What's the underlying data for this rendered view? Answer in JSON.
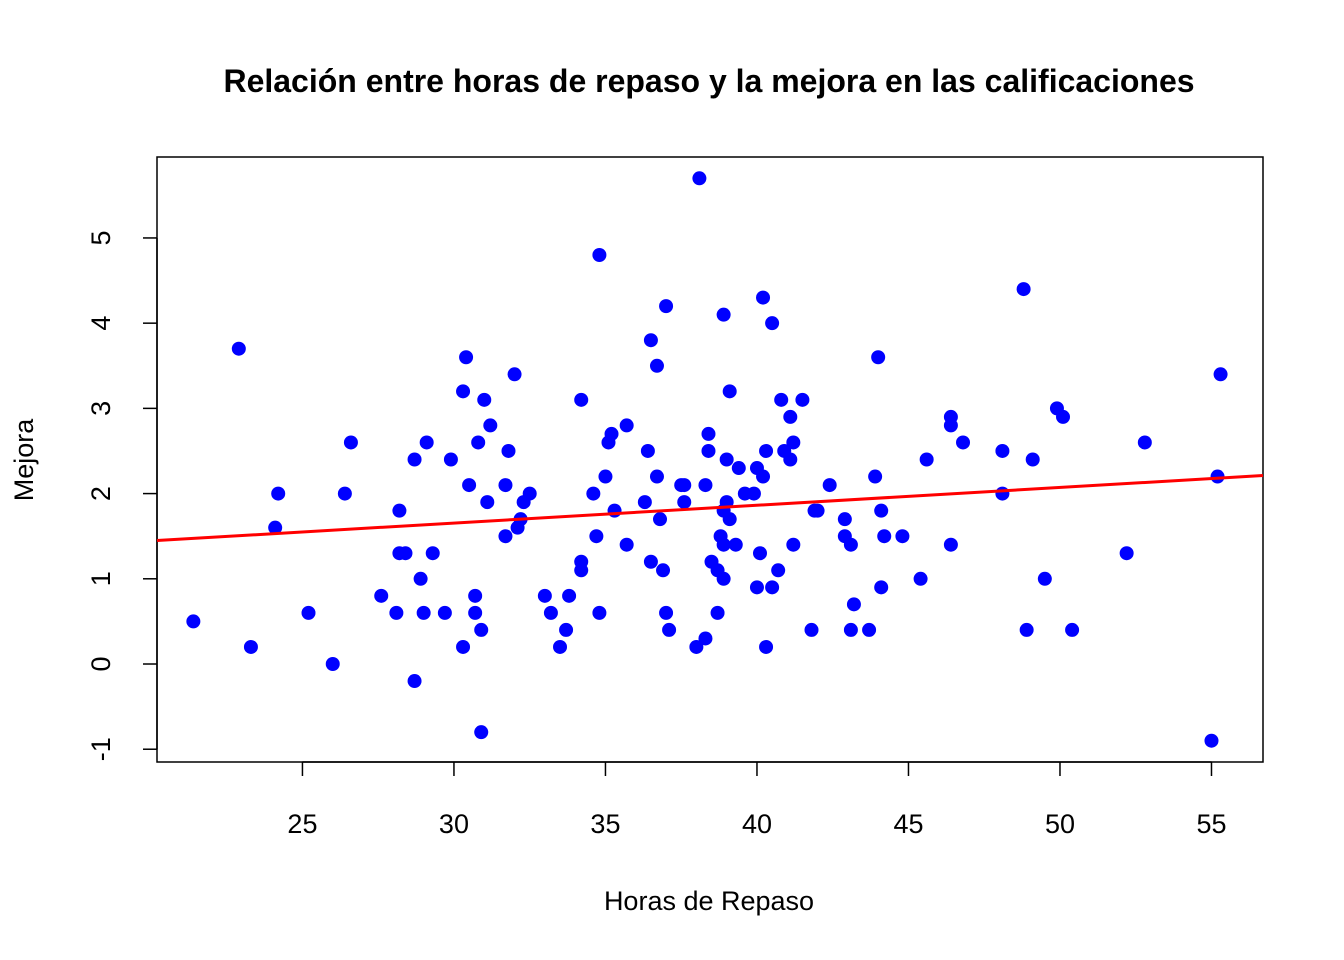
{
  "chart_data": {
    "type": "scatter",
    "title": "Relación entre horas de repaso y la mejora en las calificaciones",
    "xlabel": "Horas de Repaso",
    "ylabel": "Mejora",
    "xlim": [
      20.2,
      56.7
    ],
    "ylim": [
      -1.15,
      5.95
    ],
    "x_ticks": [
      25,
      30,
      35,
      40,
      45,
      50,
      55
    ],
    "y_ticks": [
      -1,
      0,
      1,
      2,
      3,
      4,
      5
    ],
    "x_tick_labels": [
      "25",
      "30",
      "35",
      "40",
      "45",
      "50",
      "55"
    ],
    "y_tick_labels": [
      "-1",
      "0",
      "1",
      "2",
      "3",
      "4",
      "5"
    ],
    "grid": false,
    "point_color": "#0000ff",
    "line_color": "#ff0000",
    "points": [
      {
        "x": 21.4,
        "y": 0.5
      },
      {
        "x": 22.9,
        "y": 3.7
      },
      {
        "x": 23.3,
        "y": 0.2
      },
      {
        "x": 24.1,
        "y": 1.6
      },
      {
        "x": 24.2,
        "y": 2.0
      },
      {
        "x": 25.2,
        "y": 0.6
      },
      {
        "x": 26.0,
        "y": 0.0
      },
      {
        "x": 26.4,
        "y": 2.0
      },
      {
        "x": 26.6,
        "y": 2.6
      },
      {
        "x": 27.6,
        "y": 0.8
      },
      {
        "x": 28.1,
        "y": 0.6
      },
      {
        "x": 28.2,
        "y": 1.8
      },
      {
        "x": 28.2,
        "y": 1.3
      },
      {
        "x": 28.4,
        "y": 1.3
      },
      {
        "x": 28.7,
        "y": 2.4
      },
      {
        "x": 28.7,
        "y": -0.2
      },
      {
        "x": 28.9,
        "y": 1.0
      },
      {
        "x": 29.0,
        "y": 0.6
      },
      {
        "x": 29.1,
        "y": 2.6
      },
      {
        "x": 29.3,
        "y": 1.3
      },
      {
        "x": 29.7,
        "y": 0.6
      },
      {
        "x": 29.9,
        "y": 2.4
      },
      {
        "x": 30.3,
        "y": 0.2
      },
      {
        "x": 30.3,
        "y": 3.2
      },
      {
        "x": 30.4,
        "y": 3.6
      },
      {
        "x": 30.5,
        "y": 2.1
      },
      {
        "x": 30.7,
        "y": 0.8
      },
      {
        "x": 30.7,
        "y": 0.6
      },
      {
        "x": 30.8,
        "y": 2.6
      },
      {
        "x": 30.9,
        "y": -0.8
      },
      {
        "x": 30.9,
        "y": 0.4
      },
      {
        "x": 31.0,
        "y": 3.1
      },
      {
        "x": 31.1,
        "y": 1.9
      },
      {
        "x": 31.2,
        "y": 2.8
      },
      {
        "x": 31.7,
        "y": 2.1
      },
      {
        "x": 31.7,
        "y": 1.5
      },
      {
        "x": 31.8,
        "y": 2.5
      },
      {
        "x": 32.0,
        "y": 3.4
      },
      {
        "x": 32.1,
        "y": 1.6
      },
      {
        "x": 32.2,
        "y": 1.7
      },
      {
        "x": 32.3,
        "y": 1.9
      },
      {
        "x": 32.5,
        "y": 2.0
      },
      {
        "x": 33.0,
        "y": 0.8
      },
      {
        "x": 33.2,
        "y": 0.6
      },
      {
        "x": 33.5,
        "y": 0.2
      },
      {
        "x": 33.7,
        "y": 0.4
      },
      {
        "x": 33.8,
        "y": 0.8
      },
      {
        "x": 34.2,
        "y": 1.1
      },
      {
        "x": 34.2,
        "y": 1.2
      },
      {
        "x": 34.2,
        "y": 3.1
      },
      {
        "x": 34.6,
        "y": 2.0
      },
      {
        "x": 34.7,
        "y": 1.5
      },
      {
        "x": 34.8,
        "y": 4.8
      },
      {
        "x": 34.8,
        "y": 0.6
      },
      {
        "x": 35.0,
        "y": 2.2
      },
      {
        "x": 35.1,
        "y": 2.6
      },
      {
        "x": 35.2,
        "y": 2.7
      },
      {
        "x": 35.3,
        "y": 1.8
      },
      {
        "x": 35.7,
        "y": 1.4
      },
      {
        "x": 35.7,
        "y": 2.8
      },
      {
        "x": 36.3,
        "y": 1.9
      },
      {
        "x": 36.4,
        "y": 2.5
      },
      {
        "x": 36.5,
        "y": 3.8
      },
      {
        "x": 36.5,
        "y": 1.2
      },
      {
        "x": 36.7,
        "y": 3.5
      },
      {
        "x": 36.7,
        "y": 2.2
      },
      {
        "x": 36.8,
        "y": 1.7
      },
      {
        "x": 36.9,
        "y": 1.1
      },
      {
        "x": 37.0,
        "y": 4.2
      },
      {
        "x": 37.0,
        "y": 0.6
      },
      {
        "x": 37.1,
        "y": 0.4
      },
      {
        "x": 37.5,
        "y": 2.1
      },
      {
        "x": 37.6,
        "y": 1.9
      },
      {
        "x": 37.6,
        "y": 2.1
      },
      {
        "x": 38.0,
        "y": 0.2
      },
      {
        "x": 38.1,
        "y": 5.7
      },
      {
        "x": 38.3,
        "y": 2.1
      },
      {
        "x": 38.3,
        "y": 0.3
      },
      {
        "x": 38.4,
        "y": 2.7
      },
      {
        "x": 38.4,
        "y": 2.5
      },
      {
        "x": 38.5,
        "y": 1.2
      },
      {
        "x": 38.7,
        "y": 1.1
      },
      {
        "x": 38.7,
        "y": 0.6
      },
      {
        "x": 38.8,
        "y": 1.5
      },
      {
        "x": 38.9,
        "y": 1.4
      },
      {
        "x": 38.9,
        "y": 1.0
      },
      {
        "x": 38.9,
        "y": 4.1
      },
      {
        "x": 38.9,
        "y": 1.8
      },
      {
        "x": 39.0,
        "y": 2.4
      },
      {
        "x": 39.0,
        "y": 1.9
      },
      {
        "x": 39.1,
        "y": 1.7
      },
      {
        "x": 39.1,
        "y": 3.2
      },
      {
        "x": 39.3,
        "y": 1.4
      },
      {
        "x": 39.4,
        "y": 2.3
      },
      {
        "x": 39.6,
        "y": 2.0
      },
      {
        "x": 39.9,
        "y": 2.0
      },
      {
        "x": 40.0,
        "y": 0.9
      },
      {
        "x": 40.0,
        "y": 2.3
      },
      {
        "x": 40.1,
        "y": 1.3
      },
      {
        "x": 40.2,
        "y": 2.2
      },
      {
        "x": 40.2,
        "y": 4.3
      },
      {
        "x": 40.3,
        "y": 2.5
      },
      {
        "x": 40.3,
        "y": 0.2
      },
      {
        "x": 40.5,
        "y": 4.0
      },
      {
        "x": 40.5,
        "y": 0.9
      },
      {
        "x": 40.7,
        "y": 1.1
      },
      {
        "x": 40.8,
        "y": 3.1
      },
      {
        "x": 40.9,
        "y": 2.5
      },
      {
        "x": 41.1,
        "y": 2.9
      },
      {
        "x": 41.1,
        "y": 2.4
      },
      {
        "x": 41.2,
        "y": 2.6
      },
      {
        "x": 41.2,
        "y": 1.4
      },
      {
        "x": 41.5,
        "y": 3.1
      },
      {
        "x": 41.8,
        "y": 0.4
      },
      {
        "x": 41.9,
        "y": 1.8
      },
      {
        "x": 42.0,
        "y": 1.8
      },
      {
        "x": 42.4,
        "y": 2.1
      },
      {
        "x": 42.9,
        "y": 1.7
      },
      {
        "x": 42.9,
        "y": 1.5
      },
      {
        "x": 43.1,
        "y": 0.4
      },
      {
        "x": 43.1,
        "y": 1.4
      },
      {
        "x": 43.2,
        "y": 0.7
      },
      {
        "x": 43.7,
        "y": 0.4
      },
      {
        "x": 43.9,
        "y": 2.2
      },
      {
        "x": 44.0,
        "y": 3.6
      },
      {
        "x": 44.1,
        "y": 1.8
      },
      {
        "x": 44.1,
        "y": 0.9
      },
      {
        "x": 44.2,
        "y": 1.5
      },
      {
        "x": 44.8,
        "y": 1.5
      },
      {
        "x": 45.4,
        "y": 1.0
      },
      {
        "x": 45.6,
        "y": 2.4
      },
      {
        "x": 46.4,
        "y": 2.9
      },
      {
        "x": 46.4,
        "y": 2.8
      },
      {
        "x": 46.4,
        "y": 1.4
      },
      {
        "x": 46.8,
        "y": 2.6
      },
      {
        "x": 48.1,
        "y": 2.5
      },
      {
        "x": 48.1,
        "y": 2.0
      },
      {
        "x": 48.8,
        "y": 4.4
      },
      {
        "x": 48.9,
        "y": 0.4
      },
      {
        "x": 49.1,
        "y": 2.4
      },
      {
        "x": 49.5,
        "y": 1.0
      },
      {
        "x": 49.9,
        "y": 3.0
      },
      {
        "x": 50.1,
        "y": 2.9
      },
      {
        "x": 50.4,
        "y": 0.4
      },
      {
        "x": 52.2,
        "y": 1.3
      },
      {
        "x": 52.8,
        "y": 2.6
      },
      {
        "x": 55.0,
        "y": -0.9
      },
      {
        "x": 55.2,
        "y": 2.2
      },
      {
        "x": 55.3,
        "y": 3.4
      }
    ],
    "regression_line": {
      "intercept": 1.027,
      "slope": 0.0209
    }
  }
}
